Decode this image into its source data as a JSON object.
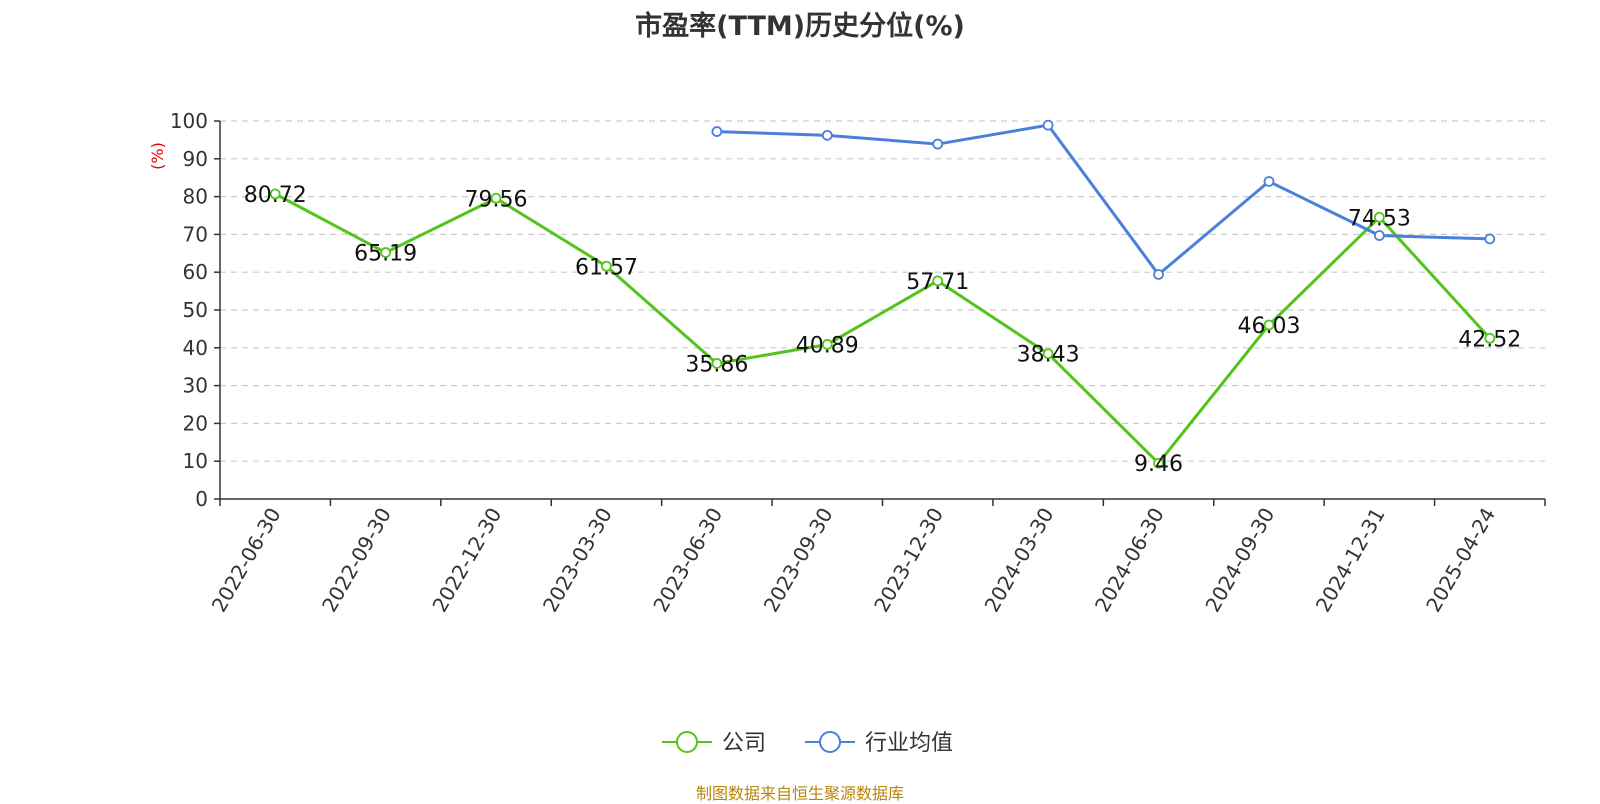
{
  "chart_data": {
    "type": "line",
    "title": "市盈率(TTM)历史分位(%)",
    "ylabel": "(%)",
    "xlabel": "",
    "ylim": [
      0,
      100
    ],
    "yticks": [
      0,
      10,
      20,
      30,
      40,
      50,
      60,
      70,
      80,
      90,
      100
    ],
    "grid": true,
    "legend_position": "bottom-center",
    "categories": [
      "2022-06-30",
      "2022-09-30",
      "2022-12-30",
      "2023-03-30",
      "2023-06-30",
      "2023-09-30",
      "2023-12-30",
      "2024-03-30",
      "2024-06-30",
      "2024-09-30",
      "2024-12-31",
      "2025-04-24"
    ],
    "series": [
      {
        "name": "公司",
        "color": "#52c41a",
        "show_labels": true,
        "values": [
          80.72,
          65.19,
          79.56,
          61.57,
          35.86,
          40.89,
          57.71,
          38.43,
          9.46,
          46.03,
          74.53,
          42.52
        ],
        "labels": [
          "80.72",
          "65.19",
          "79.56",
          "61.57",
          "35.86",
          "40.89",
          "57.71",
          "38.43",
          "9.46",
          "46.03",
          "74.53",
          "42.52"
        ]
      },
      {
        "name": "行业均值",
        "color": "#4a7fdc",
        "show_labels": false,
        "values": [
          null,
          null,
          null,
          null,
          97.2,
          96.2,
          93.9,
          98.9,
          59.4,
          84.0,
          69.7,
          68.8
        ]
      }
    ]
  },
  "footer": {
    "source": "制图数据来自恒生聚源数据库"
  }
}
